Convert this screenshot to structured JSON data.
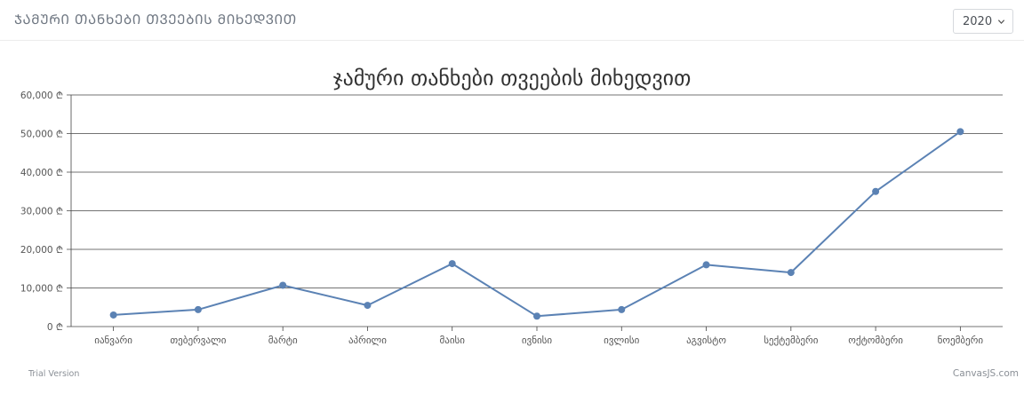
{
  "header": {
    "title": "ᲯᲐᲛᲣᲠᲘ ᲗᲐᲜᲮᲔᲑᲘ ᲗᲕᲔᲔᲑᲘᲡ ᲛᲘᲮᲔᲓᲕᲘᲗ",
    "year_selected": "2020"
  },
  "colors": {
    "line": "#5b82b4",
    "grid": "#444444",
    "axis_text": "#555555",
    "title_text": "#333333"
  },
  "footer": {
    "trial": "Trial Version",
    "credit": "CanvasJS.com"
  },
  "chart_data": {
    "type": "line",
    "title": "ჯამური თანხები თვეების მიხედვით",
    "categories": [
      "იანვარი",
      "თებერვალი",
      "მარტი",
      "აპრილი",
      "მაისი",
      "ივნისი",
      "ივლისი",
      "აგვისტო",
      "სექტემბერი",
      "ოქტომბერი",
      "ნოემბერი"
    ],
    "series": [
      {
        "values": [
          3000,
          4400,
          10700,
          5500,
          16300,
          2700,
          4400,
          16000,
          14000,
          35000,
          50500
        ]
      }
    ],
    "yticks": [
      "0 ₾",
      "10,000 ₾",
      "20,000 ₾",
      "30,000 ₾",
      "40,000 ₾",
      "50,000 ₾",
      "60,000 ₾"
    ],
    "ylim": [
      0,
      60000
    ],
    "grid": true,
    "xlabel": "",
    "ylabel": ""
  }
}
